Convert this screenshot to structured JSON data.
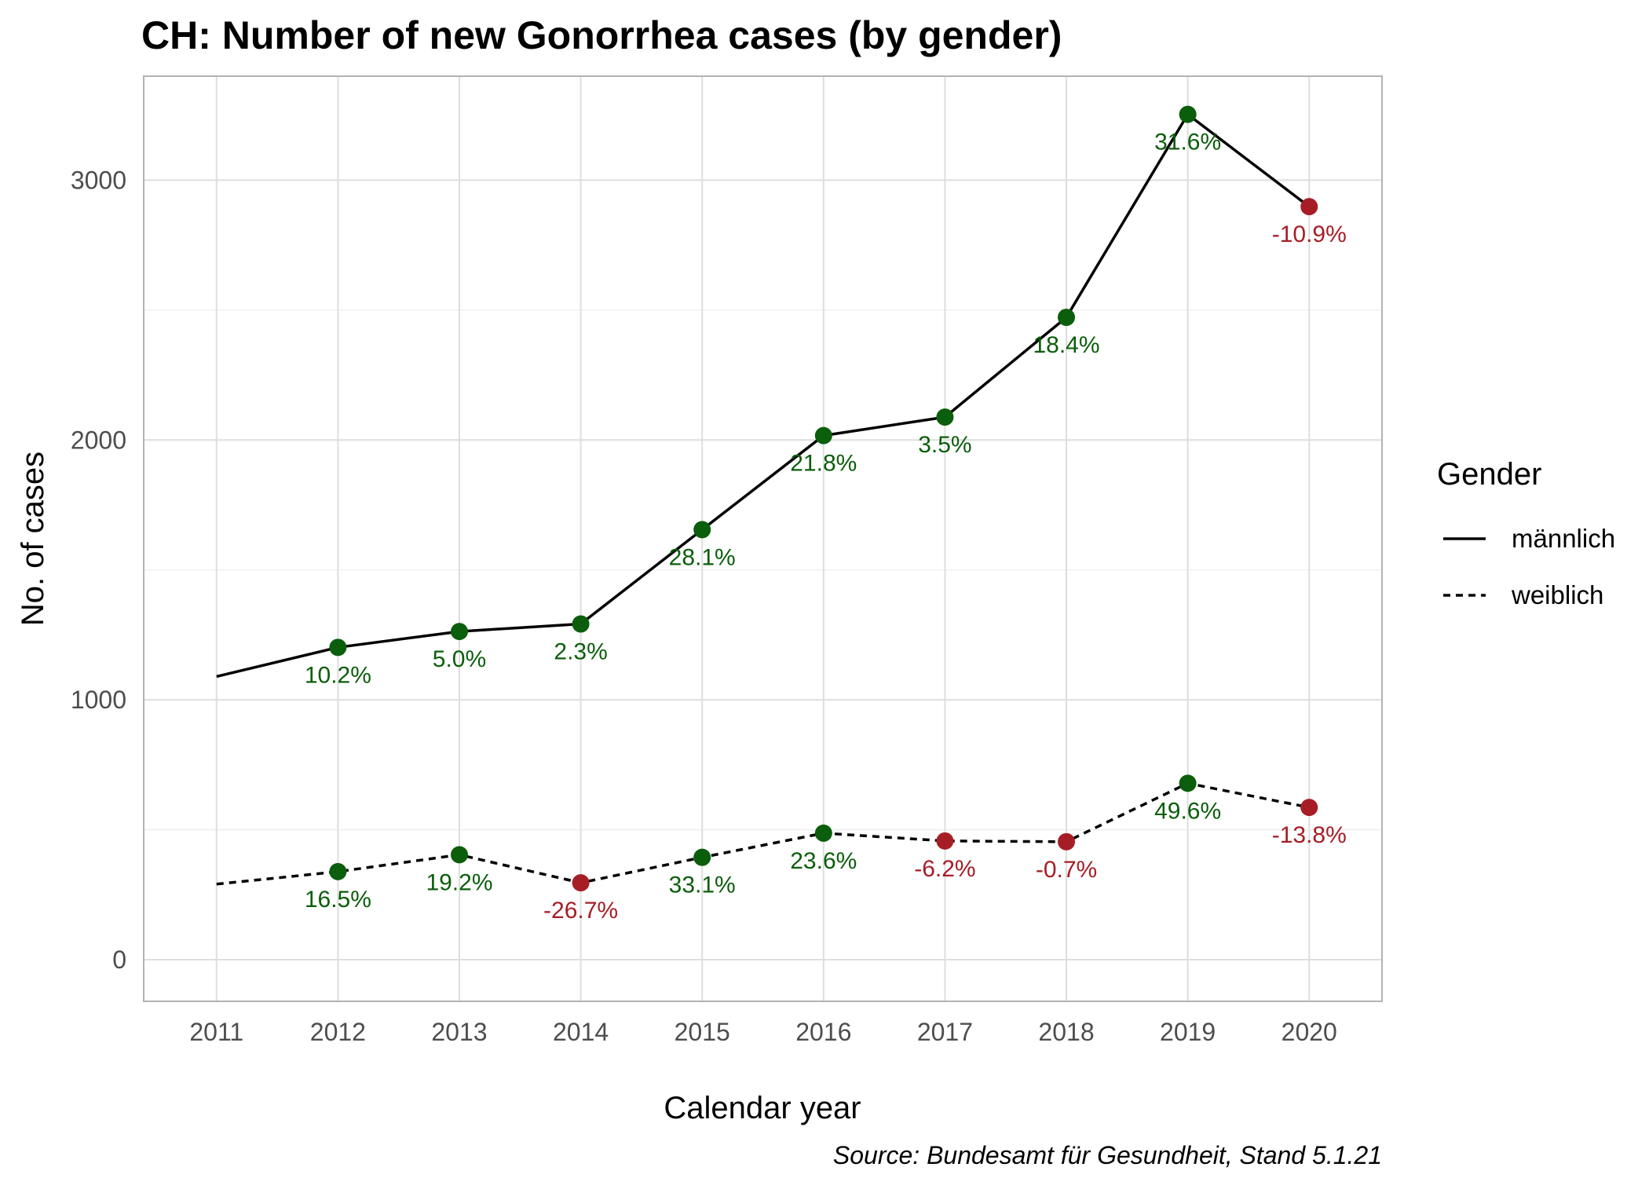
{
  "chart_data": {
    "type": "line",
    "title": "CH: Number of new Gonorrhea cases (by gender)",
    "xlabel": "Calendar year",
    "ylabel": "No. of cases",
    "caption": "Source: Bundesamt für Gesundheit, Stand 5.1.21",
    "x": [
      2011,
      2012,
      2013,
      2014,
      2015,
      2016,
      2017,
      2018,
      2019,
      2020
    ],
    "x_ticks": [
      "2011",
      "2012",
      "2013",
      "2014",
      "2015",
      "2016",
      "2017",
      "2018",
      "2019",
      "2020"
    ],
    "y_ticks": [
      "0",
      "1000",
      "2000",
      "3000"
    ],
    "y_tick_values": [
      0,
      1000,
      2000,
      3000
    ],
    "xlim": [
      2010.4,
      2020.6
    ],
    "ylim": [
      -160,
      3400
    ],
    "grid": true,
    "legend": {
      "title": "Gender",
      "position": "right",
      "entries": [
        "männlich",
        "weiblich"
      ]
    },
    "colors": {
      "increase": "#0b5e0b",
      "decrease": "#a71d26",
      "line": "#000000",
      "grid": "#dedede",
      "panel_border": "#b3b3b3"
    },
    "series": [
      {
        "name": "männlich",
        "line_style": "solid",
        "values": [
          1090,
          1202,
          1263,
          1292,
          1655,
          2017,
          2088,
          2472,
          3253,
          2898
        ],
        "labels": [
          "",
          "10.2%",
          "5.0%",
          "2.3%",
          "28.1%",
          "21.8%",
          "3.5%",
          "18.4%",
          "31.6%",
          "-10.9%"
        ],
        "change_sign": [
          0,
          1,
          1,
          1,
          1,
          1,
          1,
          1,
          1,
          -1
        ]
      },
      {
        "name": "weiblich",
        "line_style": "dashed",
        "values": [
          291,
          339,
          404,
          296,
          394,
          487,
          457,
          454,
          679,
          586
        ],
        "labels": [
          "",
          "16.5%",
          "19.2%",
          "-26.7%",
          "33.1%",
          "23.6%",
          "-6.2%",
          "-0.7%",
          "49.6%",
          "-13.8%"
        ],
        "change_sign": [
          0,
          1,
          1,
          -1,
          1,
          1,
          -1,
          -1,
          1,
          -1
        ]
      }
    ]
  }
}
